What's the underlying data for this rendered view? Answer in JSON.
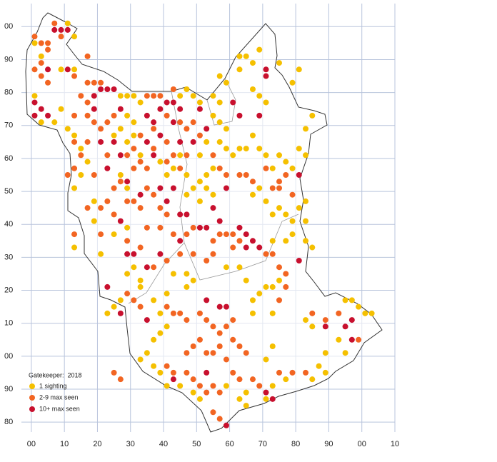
{
  "chart_data": {
    "type": "scatter",
    "title": "Gatekeeper:  2018",
    "xlim": [
      -3,
      110
    ],
    "ylim": [
      -23,
      107
    ],
    "xticks": [
      {
        "value": 0,
        "label": "00"
      },
      10,
      20,
      30,
      40,
      50,
      60,
      70,
      80,
      90,
      {
        "value": 100,
        "label": "00"
      },
      {
        "value": 110,
        "label": "10"
      }
    ],
    "yticks": [
      {
        "value": 100,
        "label": "00"
      },
      90,
      80,
      70,
      60,
      50,
      40,
      30,
      20,
      10,
      {
        "value": 0,
        "label": "00"
      },
      {
        "value": -10,
        "label": "90"
      },
      {
        "value": -20,
        "label": "80"
      }
    ],
    "grid": true,
    "legend": "lower-left",
    "series": [
      {
        "name": "1 sighting",
        "color": "#f5c000",
        "x": [
          1,
          11,
          3,
          13,
          9,
          13,
          1,
          9,
          7,
          3,
          27,
          29,
          31,
          33,
          29,
          31,
          27,
          25,
          29,
          31,
          45,
          47,
          49,
          51,
          55,
          57,
          55,
          57,
          59,
          57,
          59,
          61,
          63,
          55,
          53,
          51,
          49,
          53,
          55,
          51,
          63,
          65,
          69,
          67,
          63,
          57,
          59,
          67,
          69,
          71,
          75,
          81,
          79,
          85,
          83,
          81,
          83,
          79,
          77,
          75,
          67,
          65,
          69,
          71,
          73,
          67,
          69,
          71,
          73,
          75,
          77,
          79,
          81,
          83,
          83,
          79,
          77,
          73,
          83,
          85,
          11,
          13,
          15,
          17,
          15,
          13,
          19,
          19,
          13,
          21,
          27,
          25,
          29,
          31,
          33,
          25,
          23,
          27,
          33,
          29,
          37,
          39,
          41,
          39,
          37,
          35,
          33,
          37,
          39,
          41,
          45,
          49,
          51,
          59,
          63,
          65,
          65,
          71,
          73,
          77,
          73,
          73,
          71,
          67,
          67,
          69,
          71,
          73,
          75,
          83,
          85,
          85,
          87,
          89,
          89,
          93,
          95,
          95,
          97,
          99,
          103,
          101,
          65,
          63,
          59,
          49,
          47,
          43,
          41,
          47,
          43,
          47,
          47,
          41,
          45,
          29,
          33,
          39,
          51,
          53
        ],
        "values": [
          95,
          101,
          91,
          97,
          87,
          87,
          79,
          75,
          71,
          71,
          79,
          79,
          79,
          77,
          73,
          71,
          69,
          67,
          65,
          67,
          79,
          81,
          79,
          77,
          79,
          77,
          73,
          71,
          69,
          65,
          63,
          61,
          63,
          57,
          55,
          53,
          51,
          51,
          49,
          47,
          91,
          91,
          93,
          89,
          87,
          85,
          83,
          81,
          79,
          77,
          89,
          87,
          83,
          73,
          69,
          63,
          61,
          57,
          59,
          61,
          67,
          63,
          63,
          61,
          57,
          49,
          51,
          47,
          43,
          45,
          43,
          41,
          45,
          47,
          41,
          37,
          35,
          35,
          35,
          33,
          69,
          67,
          63,
          59,
          55,
          51,
          47,
          41,
          33,
          31,
          55,
          37,
          39,
          27,
          23,
          15,
          13,
          17,
          21,
          25,
          17,
          13,
          9,
          7,
          5,
          1,
          -1,
          -3,
          -5,
          -9,
          -9,
          -11,
          -13,
          -9,
          -13,
          -11,
          -15,
          -13,
          -9,
          -7,
          13,
          3,
          -1,
          13,
          17,
          19,
          21,
          21,
          23,
          11,
          9,
          -7,
          -3,
          -5,
          1,
          5,
          1,
          17,
          17,
          15,
          13,
          13,
          23,
          27,
          27,
          23,
          25,
          25,
          19,
          21,
          57,
          55,
          49,
          55,
          61,
          51,
          61,
          59,
          61,
          65
        ]
      },
      {
        "name": "2-9 max seen",
        "color": "#f26522",
        "x": [
          7,
          9,
          1,
          3,
          5,
          5,
          3,
          1,
          3,
          5,
          17,
          13,
          17,
          19,
          21,
          15,
          17,
          13,
          17,
          19,
          21,
          23,
          25,
          13,
          17,
          23,
          15,
          13,
          19,
          25,
          27,
          23,
          21,
          25,
          29,
          31,
          31,
          33,
          35,
          37,
          41,
          43,
          45,
          41,
          47,
          33,
          37,
          41,
          45,
          47,
          35,
          37,
          43,
          39,
          49,
          51,
          55,
          63,
          65,
          67,
          73,
          75,
          77,
          75,
          79,
          35,
          37,
          39,
          41,
          33,
          35,
          39,
          43,
          47,
          49,
          55,
          57,
          59,
          61,
          61,
          63,
          55,
          53,
          49,
          45,
          41,
          37,
          33,
          29,
          71,
          73,
          75,
          77,
          77,
          75,
          29,
          31,
          33,
          41,
          43,
          45,
          47,
          51,
          53,
          55,
          57,
          59,
          61,
          61,
          63,
          65,
          51,
          49,
          47,
          53,
          55,
          57,
          59,
          41,
          43,
          47,
          49,
          51,
          53,
          55,
          57,
          61,
          63,
          67,
          69,
          75,
          79,
          83,
          85,
          89,
          93,
          99,
          55,
          57,
          27,
          25,
          17,
          11,
          13,
          21,
          29,
          31,
          57,
          59,
          71
        ],
        "values": [
          101,
          97,
          97,
          95,
          95,
          93,
          89,
          87,
          85,
          83,
          91,
          85,
          83,
          83,
          83,
          79,
          77,
          73,
          73,
          71,
          69,
          71,
          73,
          65,
          65,
          61,
          61,
          57,
          55,
          51,
          53,
          47,
          45,
          43,
          61,
          57,
          63,
          59,
          57,
          63,
          65,
          61,
          57,
          59,
          61,
          67,
          69,
          73,
          71,
          69,
          79,
          79,
          81,
          79,
          71,
          67,
          61,
          55,
          55,
          53,
          51,
          53,
          55,
          51,
          49,
          51,
          49,
          45,
          43,
          45,
          39,
          39,
          37,
          37,
          39,
          35,
          37,
          37,
          37,
          33,
          35,
          31,
          29,
          31,
          31,
          29,
          27,
          33,
          35,
          31,
          31,
          27,
          25,
          21,
          17,
          19,
          17,
          15,
          15,
          13,
          13,
          11,
          13,
          11,
          9,
          7,
          9,
          11,
          5,
          3,
          1,
          5,
          3,
          1,
          1,
          1,
          3,
          -1,
          -3,
          -5,
          -5,
          -7,
          -9,
          -11,
          -9,
          -11,
          -5,
          -7,
          -7,
          -9,
          -5,
          -5,
          -5,
          13,
          11,
          13,
          5,
          -17,
          -19,
          -7,
          -5,
          45,
          55,
          37,
          37,
          47,
          47,
          57,
          55,
          57
        ]
      },
      {
        "name": "10+ max seen",
        "color": "#c8102e",
        "x": [
          7,
          9,
          11,
          5,
          11,
          1,
          1,
          3,
          5,
          21,
          23,
          25,
          19,
          19,
          27,
          21,
          25,
          27,
          23,
          35,
          37,
          39,
          41,
          43,
          45,
          43,
          39,
          35,
          45,
          49,
          53,
          61,
          63,
          69,
          71,
          71,
          51,
          37,
          39,
          43,
          45,
          47,
          41,
          33,
          29,
          51,
          53,
          55,
          57,
          65,
          63,
          67,
          65,
          69,
          81,
          81,
          45,
          39,
          35,
          23,
          27,
          29,
          31,
          53,
          57,
          59,
          35,
          27,
          59,
          89,
          97,
          97,
          95,
          71,
          73,
          59,
          43,
          53
        ],
        "values": [
          99,
          99,
          99,
          87,
          87,
          77,
          73,
          75,
          73,
          81,
          81,
          81,
          79,
          75,
          75,
          65,
          65,
          61,
          57,
          73,
          71,
          75,
          77,
          77,
          75,
          71,
          67,
          65,
          65,
          65,
          69,
          77,
          73,
          73,
          87,
          85,
          75,
          61,
          51,
          51,
          43,
          43,
          47,
          49,
          53,
          39,
          39,
          45,
          41,
          37,
          39,
          35,
          33,
          33,
          55,
          29,
          35,
          31,
          27,
          21,
          13,
          31,
          31,
          17,
          15,
          15,
          11,
          41,
          51,
          9,
          11,
          5,
          9,
          -11,
          -13,
          -21,
          -7,
          -5
        ]
      }
    ]
  }
}
